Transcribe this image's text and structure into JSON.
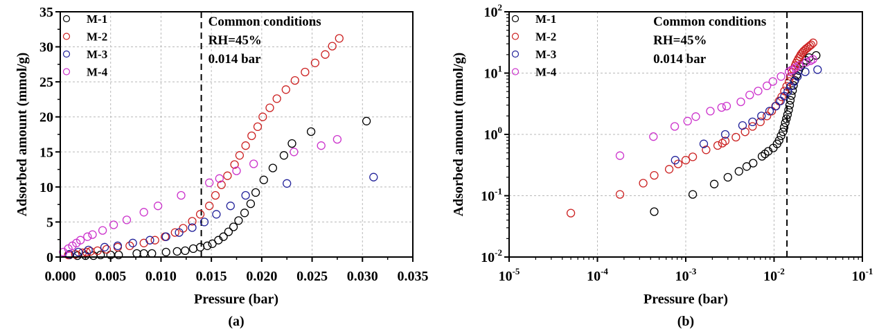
{
  "chart_data": [
    {
      "type": "scatter",
      "panel_label": "(a)",
      "xlabel": "Pressure (bar)",
      "ylabel": "Adsorbed amount (mmol/g)",
      "xscale": "linear",
      "yscale": "linear",
      "xlim": [
        0,
        0.035
      ],
      "ylim": [
        0,
        35
      ],
      "xticks": [
        "0.000",
        "0.005",
        "0.010",
        "0.015",
        "0.020",
        "0.025",
        "0.030",
        "0.035"
      ],
      "yticks": [
        "0",
        "5",
        "10",
        "15",
        "20",
        "25",
        "30",
        "35"
      ],
      "grid": true,
      "legend_position": "top-left",
      "vline": 0.014,
      "annotations": [
        "Common conditions",
        "RH=45%",
        "0.014 bar"
      ],
      "series": [
        {
          "name": "M-1",
          "color": "#000000",
          "x": [
            0.0009,
            0.0017,
            0.0025,
            0.0033,
            0.004,
            0.005,
            0.0058,
            0.0076,
            0.0083,
            0.0091,
            0.0105,
            0.0116,
            0.0124,
            0.0132,
            0.0139,
            0.0146,
            0.0151,
            0.0157,
            0.0162,
            0.0167,
            0.0172,
            0.0177,
            0.0183,
            0.0189,
            0.0194,
            0.0202,
            0.0211,
            0.0222,
            0.023,
            0.0249,
            0.0304
          ],
          "y": [
            0.3,
            0.2,
            0.2,
            0.2,
            0.3,
            0.3,
            0.3,
            0.5,
            0.5,
            0.5,
            0.7,
            0.8,
            0.9,
            1.2,
            1.4,
            1.6,
            1.9,
            2.4,
            2.9,
            3.6,
            4.3,
            5.2,
            6.3,
            7.6,
            9.2,
            11.0,
            12.7,
            14.5,
            16.2,
            17.9,
            19.4
          ]
        },
        {
          "name": "M-2",
          "color": "#cc2222",
          "x": [
            0.0008,
            0.0015,
            0.0022,
            0.0026,
            0.003,
            0.0037,
            0.0046,
            0.0057,
            0.0069,
            0.0083,
            0.0094,
            0.0104,
            0.0114,
            0.0122,
            0.0131,
            0.0139,
            0.0148,
            0.0154,
            0.016,
            0.0166,
            0.0173,
            0.0178,
            0.0184,
            0.019,
            0.0196,
            0.0201,
            0.0208,
            0.0215,
            0.0224,
            0.0233,
            0.0243,
            0.0253,
            0.0263,
            0.027,
            0.0277
          ],
          "y": [
            0.3,
            0.4,
            0.6,
            0.7,
            0.8,
            0.9,
            1.1,
            1.4,
            1.6,
            2.0,
            2.4,
            2.9,
            3.5,
            4.1,
            5.1,
            6.1,
            7.3,
            8.8,
            10.3,
            11.6,
            13.2,
            14.5,
            15.9,
            17.3,
            18.6,
            20.0,
            21.3,
            22.6,
            23.9,
            25.2,
            26.4,
            27.7,
            28.9,
            30.1,
            31.2
          ]
        },
        {
          "name": "M-3",
          "color": "#22229a",
          "x": [
            0.0009,
            0.0018,
            0.0028,
            0.0044,
            0.0057,
            0.0072,
            0.0089,
            0.0105,
            0.0118,
            0.0131,
            0.0143,
            0.0155,
            0.0169,
            0.0184,
            0.0225,
            0.0311
          ],
          "y": [
            0.4,
            0.7,
            1.0,
            1.4,
            1.6,
            2.0,
            2.4,
            2.9,
            3.5,
            4.2,
            5.0,
            6.1,
            7.3,
            8.8,
            10.5,
            11.4
          ]
        },
        {
          "name": "M-4",
          "color": "#cc33cc",
          "x": [
            0.0003,
            0.0008,
            0.0012,
            0.0016,
            0.002,
            0.0027,
            0.0032,
            0.0042,
            0.0053,
            0.0066,
            0.0083,
            0.0097,
            0.012,
            0.0148,
            0.0158,
            0.0175,
            0.0192,
            0.0232,
            0.0259,
            0.0275
          ],
          "y": [
            0.7,
            1.2,
            1.6,
            2.0,
            2.4,
            2.9,
            3.2,
            3.8,
            4.6,
            5.3,
            6.4,
            7.3,
            8.8,
            10.6,
            11.2,
            12.3,
            13.3,
            15.0,
            15.9,
            16.8
          ]
        }
      ]
    },
    {
      "type": "scatter",
      "panel_label": "(b)",
      "xlabel": "Pressure (bar)",
      "ylabel": "Adsorbed amount (mmol/g)",
      "xscale": "log",
      "yscale": "log",
      "xlim": [
        1e-05,
        0.1
      ],
      "ylim": [
        0.01,
        100
      ],
      "xticks": [
        {
          "base": "10",
          "exp": "-5"
        },
        {
          "base": "10",
          "exp": "-4"
        },
        {
          "base": "10",
          "exp": "-3"
        },
        {
          "base": "10",
          "exp": "-2"
        },
        {
          "base": "10",
          "exp": "-1"
        }
      ],
      "yticks": [
        {
          "base": "10",
          "exp": "-2"
        },
        {
          "base": "10",
          "exp": "-1"
        },
        {
          "base": "10",
          "exp": "0"
        },
        {
          "base": "10",
          "exp": "1"
        },
        {
          "base": "10",
          "exp": "2"
        }
      ],
      "grid": true,
      "legend_position": "top-left",
      "vline": 0.014,
      "annotations": [
        "Common conditions",
        "RH=45%",
        "0.014 bar"
      ],
      "series": [
        {
          "name": "M-1",
          "color": "#000000",
          "x": [
            0.00044,
            0.0012,
            0.0021,
            0.003,
            0.004,
            0.0049,
            0.0058,
            0.0073,
            0.0079,
            0.0086,
            0.0098,
            0.0108,
            0.0114,
            0.012,
            0.0126,
            0.013,
            0.0134,
            0.0138,
            0.0142,
            0.0146,
            0.015,
            0.0153,
            0.0157,
            0.0162,
            0.0166,
            0.0172,
            0.018,
            0.019,
            0.02,
            0.0215,
            0.023,
            0.025,
            0.03
          ],
          "y": [
            0.055,
            0.105,
            0.155,
            0.2,
            0.25,
            0.3,
            0.34,
            0.44,
            0.48,
            0.53,
            0.6,
            0.7,
            0.8,
            0.95,
            1.1,
            1.3,
            1.55,
            1.8,
            2.1,
            2.5,
            3.0,
            3.6,
            4.3,
            5.2,
            6.3,
            7.6,
            9.2,
            11,
            12.7,
            14.5,
            16.2,
            17.9,
            19.4
          ]
        },
        {
          "name": "M-2",
          "color": "#cc2222",
          "x": [
            5e-05,
            0.00018,
            0.00033,
            0.00044,
            0.00065,
            0.00082,
            0.001,
            0.0012,
            0.0017,
            0.0023,
            0.0026,
            0.0028,
            0.0037,
            0.0047,
            0.0057,
            0.007,
            0.0083,
            0.0094,
            0.0104,
            0.0114,
            0.0122,
            0.0131,
            0.0139,
            0.0148,
            0.0154,
            0.016,
            0.0166,
            0.0173,
            0.0178,
            0.0184,
            0.019,
            0.0196,
            0.0201,
            0.0208,
            0.0215,
            0.0224,
            0.0233,
            0.0243,
            0.0253,
            0.0263,
            0.0277
          ],
          "y": [
            0.052,
            0.105,
            0.16,
            0.215,
            0.27,
            0.33,
            0.38,
            0.43,
            0.56,
            0.66,
            0.72,
            0.78,
            0.9,
            1.1,
            1.35,
            1.6,
            2.0,
            2.4,
            2.9,
            3.5,
            4.1,
            5.1,
            6.1,
            7.3,
            8.8,
            10.3,
            11.6,
            13.2,
            14.5,
            15.9,
            17.3,
            18.6,
            20,
            21.3,
            22.6,
            23.9,
            25.2,
            26.4,
            27.7,
            28.9,
            31.2
          ]
        },
        {
          "name": "M-3",
          "color": "#22229a",
          "x": [
            0.00076,
            0.0016,
            0.0028,
            0.0044,
            0.0057,
            0.0072,
            0.0089,
            0.0105,
            0.0118,
            0.0131,
            0.0143,
            0.0155,
            0.0169,
            0.0184,
            0.0225,
            0.0311
          ],
          "y": [
            0.38,
            0.7,
            1.0,
            1.4,
            1.6,
            2.0,
            2.4,
            2.9,
            3.5,
            4.2,
            5.0,
            6.1,
            7.3,
            8.8,
            10.5,
            11.4
          ]
        },
        {
          "name": "M-4",
          "color": "#cc33cc",
          "x": [
            0.00018,
            0.00043,
            0.00075,
            0.00105,
            0.0013,
            0.0019,
            0.00255,
            0.0029,
            0.0042,
            0.0053,
            0.0066,
            0.0083,
            0.0097,
            0.012,
            0.0148,
            0.0158,
            0.0175,
            0.0192,
            0.0232,
            0.0259,
            0.0275
          ],
          "y": [
            0.45,
            0.92,
            1.35,
            1.65,
            1.95,
            2.4,
            2.75,
            2.9,
            3.4,
            4.4,
            5.1,
            6.2,
            7.3,
            8.8,
            10.6,
            11.2,
            12.3,
            13.3,
            15,
            15.9,
            16.8
          ]
        }
      ]
    }
  ]
}
